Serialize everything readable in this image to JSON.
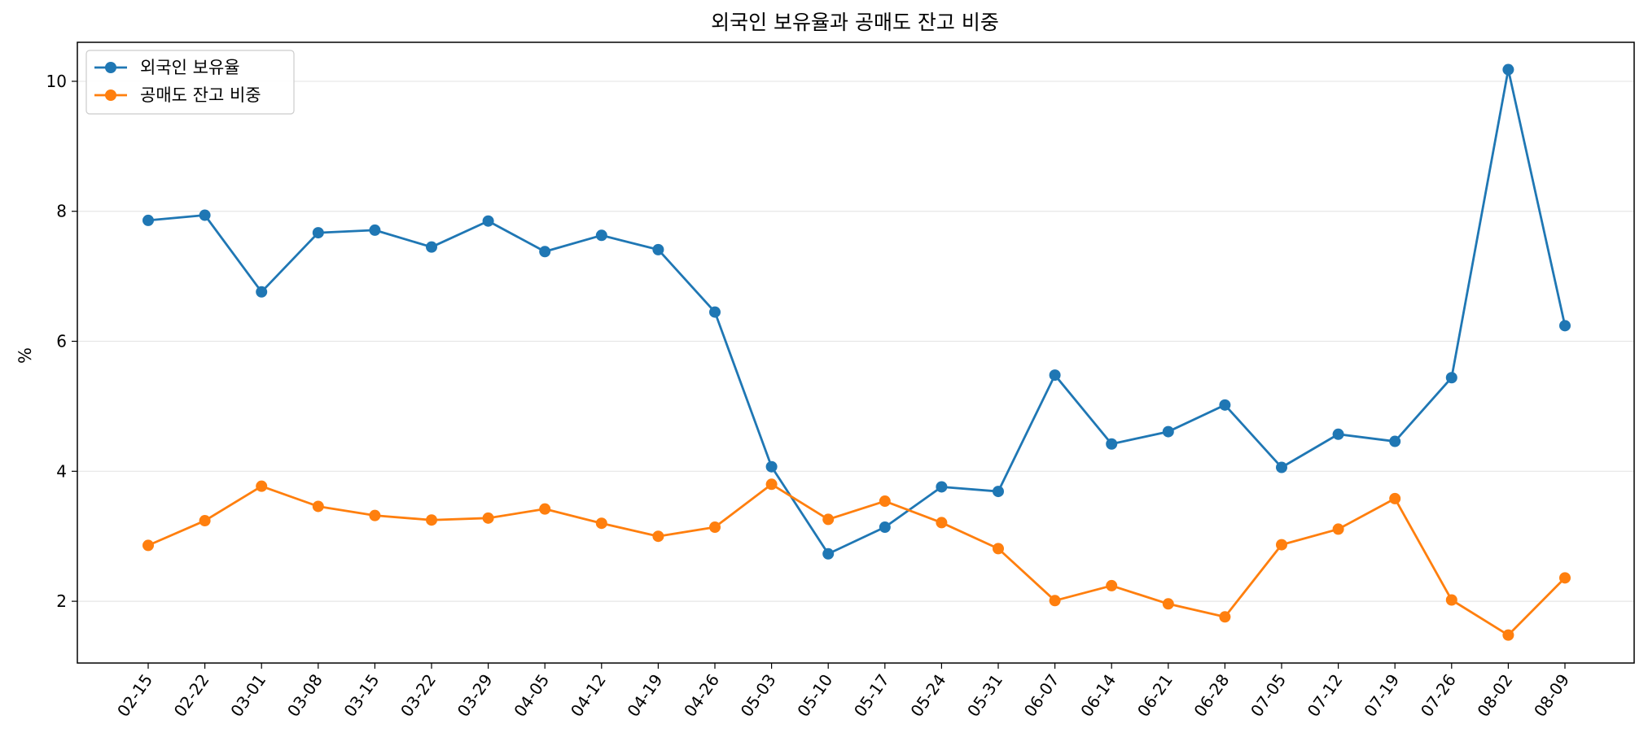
{
  "chart_data": {
    "type": "line",
    "title": "외국인 보유율과 공매도 잔고 비중",
    "xlabel": "",
    "ylabel": "%",
    "categories": [
      "02-15",
      "02-22",
      "03-01",
      "03-08",
      "03-15",
      "03-22",
      "03-29",
      "04-05",
      "04-12",
      "04-19",
      "04-26",
      "05-03",
      "05-10",
      "05-17",
      "05-24",
      "05-31",
      "06-07",
      "06-14",
      "06-21",
      "06-28",
      "07-05",
      "07-12",
      "07-19",
      "07-26",
      "08-02",
      "08-09"
    ],
    "ylim": [
      1.05,
      10.6
    ],
    "yticks": [
      2,
      4,
      6,
      8,
      10
    ],
    "grid": "horizontal",
    "legend": "top-left",
    "series": [
      {
        "name": "외국인 보유율",
        "color": "#1f77b4",
        "values": [
          7.86,
          7.94,
          6.76,
          7.67,
          7.71,
          7.45,
          7.85,
          7.38,
          7.63,
          7.41,
          6.45,
          4.07,
          2.73,
          3.14,
          3.76,
          3.69,
          5.48,
          4.42,
          4.61,
          5.02,
          4.06,
          4.57,
          4.46,
          5.44,
          10.18,
          6.24
        ]
      },
      {
        "name": "공매도 잔고 비중",
        "color": "#ff7f0e",
        "values": [
          2.86,
          3.24,
          3.77,
          3.46,
          3.32,
          3.25,
          3.28,
          3.42,
          3.2,
          3.0,
          3.14,
          3.8,
          3.26,
          3.54,
          3.21,
          2.81,
          2.01,
          2.24,
          1.96,
          1.76,
          2.87,
          3.11,
          3.58,
          2.02,
          1.48,
          2.36
        ]
      }
    ]
  }
}
